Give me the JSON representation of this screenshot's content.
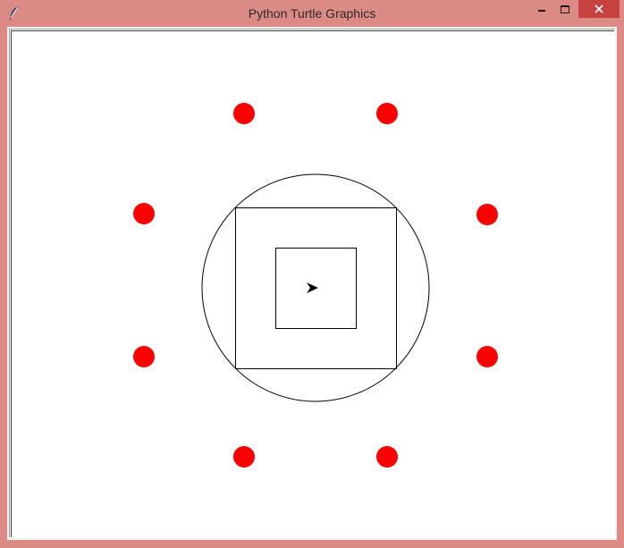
{
  "window": {
    "title": "Python Turtle Graphics",
    "app_icon": "feather-icon",
    "controls": {
      "minimize_icon": "minimize-icon",
      "maximize_icon": "maximize-icon",
      "close_icon": "close-icon"
    }
  },
  "canvas": {
    "background": "#ffffff",
    "dot_color": "#ff0000",
    "line_color": "#000000",
    "turtle_icon": "turtle-arrow-icon"
  }
}
